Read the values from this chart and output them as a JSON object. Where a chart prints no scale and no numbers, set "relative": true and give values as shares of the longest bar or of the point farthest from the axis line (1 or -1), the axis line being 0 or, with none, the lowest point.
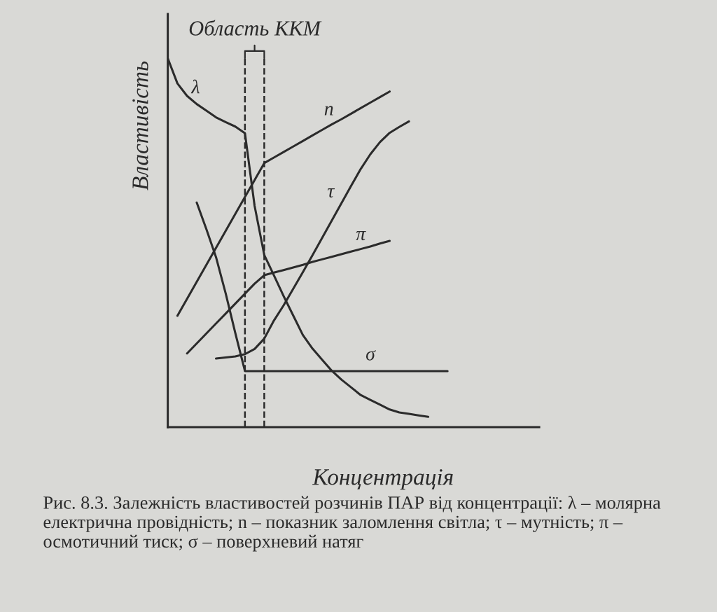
{
  "chart_data": {
    "type": "line",
    "relative": true,
    "xlabel": "Концентрація",
    "ylabel": "Властивість",
    "categories": [
      null,
      null,
      null,
      null,
      null,
      null,
      null,
      null,
      null,
      null,
      null,
      null,
      null,
      null,
      null,
      null,
      null,
      null,
      null,
      null,
      null,
      null,
      null,
      null,
      null,
      null,
      null,
      null,
      null,
      null,
      null,
      null,
      null,
      null,
      null,
      null,
      null,
      null,
      null
    ],
    "series": [
      {
        "name": "λ",
        "color": "#2b2b2b",
        "values": [
          1.0,
          0.932,
          0.898,
          0.876,
          0.858,
          0.84,
          0.827,
          0.815,
          0.797,
          0.6,
          0.467,
          0.412,
          0.356,
          0.303,
          0.25,
          0.213,
          0.183,
          0.153,
          0.129,
          0.108,
          0.087,
          0.074,
          0.061,
          0.048,
          0.04,
          0.036,
          0.032,
          0.028,
          null,
          null,
          null,
          null,
          null,
          null,
          null,
          null,
          null,
          null,
          null
        ]
      },
      {
        "name": "n",
        "color": "#2b2b2b",
        "values": [
          null,
          0.302,
          0.348,
          0.394,
          0.44,
          0.486,
          0.532,
          0.578,
          0.624,
          0.67,
          0.716,
          0.731,
          0.746,
          0.761,
          0.776,
          0.791,
          0.806,
          0.821,
          0.835,
          0.85,
          0.865,
          0.88,
          0.895,
          0.91,
          null,
          null,
          null,
          null,
          null,
          null,
          null,
          null,
          null,
          null,
          null,
          null,
          null,
          null,
          null
        ]
      },
      {
        "name": "τ",
        "color": "#2b2b2b",
        "values": [
          null,
          null,
          null,
          null,
          null,
          0.186,
          0.189,
          0.192,
          0.198,
          0.212,
          0.24,
          0.289,
          0.33,
          0.375,
          0.42,
          0.466,
          0.513,
          0.56,
          0.607,
          0.654,
          0.7,
          0.74,
          0.773,
          0.798,
          0.814,
          0.829,
          null,
          null,
          null,
          null,
          null,
          null,
          null,
          null,
          null,
          null,
          null,
          null,
          null
        ]
      },
      {
        "name": "π",
        "color": "#2b2b2b",
        "values": [
          null,
          null,
          0.2,
          0.227,
          0.254,
          0.281,
          0.308,
          0.335,
          0.362,
          0.389,
          0.412,
          0.419,
          0.426,
          0.433,
          0.44,
          0.448,
          0.455,
          0.462,
          0.469,
          0.476,
          0.483,
          0.49,
          0.498,
          0.505,
          null,
          null,
          null,
          null,
          null,
          null,
          null,
          null,
          null,
          null,
          null,
          null,
          null,
          null,
          null
        ]
      },
      {
        "name": "σ",
        "color": "#2b2b2b",
        "values": [
          null,
          null,
          null,
          0.609,
          0.537,
          0.461,
          0.363,
          0.255,
          0.152,
          0.152,
          0.152,
          0.152,
          0.152,
          0.152,
          0.152,
          0.152,
          0.152,
          0.152,
          0.152,
          0.152,
          0.152,
          0.152,
          0.152,
          0.152,
          0.152,
          0.152,
          0.152,
          0.152,
          0.152,
          0.152,
          null,
          null,
          null,
          null,
          null,
          null,
          null,
          null,
          null
        ]
      }
    ],
    "annotations": [
      "Область ККМ",
      "Рис. 8.3. Залежність властивостей розчинів ПАР від концентрації: λ – молярна електрична провідність; n – показник заломлення світла; τ – мутність; π – осмотичний тиск; σ – поверхневий натяг"
    ],
    "grid": false,
    "legend": false
  }
}
